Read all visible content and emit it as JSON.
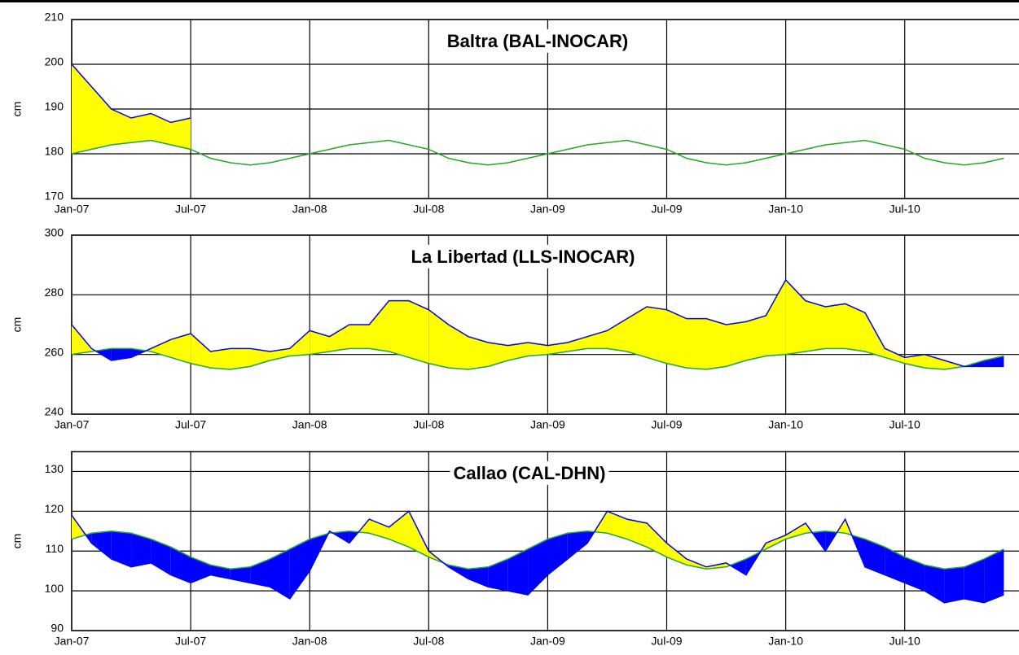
{
  "chart_data": [
    {
      "type": "area",
      "title": "Baltra (BAL-INOCAR)",
      "y_label": "cm",
      "x": [
        "Jan-07",
        "Feb-07",
        "Mar-07",
        "Apr-07",
        "May-07",
        "Jun-07",
        "Jul-07",
        "Aug-07",
        "Sep-07",
        "Oct-07",
        "Nov-07",
        "Dec-07",
        "Jan-08",
        "Feb-08",
        "Mar-08",
        "Apr-08",
        "May-08",
        "Jun-08",
        "Jul-08",
        "Aug-08",
        "Sep-08",
        "Oct-08",
        "Nov-08",
        "Dec-08",
        "Jan-09",
        "Feb-09",
        "Mar-09",
        "Apr-09",
        "May-09",
        "Jun-09",
        "Jul-09",
        "Aug-09",
        "Sep-09",
        "Oct-09",
        "Nov-09",
        "Dec-09",
        "Jan-10",
        "Feb-10",
        "Mar-10",
        "Apr-10",
        "May-10",
        "Jun-10",
        "Jul-10",
        "Aug-10",
        "Sep-10",
        "Oct-10",
        "Nov-10",
        "Dec-10"
      ],
      "xticks": [
        "Jan-07",
        "Jul-07",
        "Jan-08",
        "Jul-08",
        "Jan-09",
        "Jul-09",
        "Jan-10",
        "Jul-10"
      ],
      "ylim": [
        170,
        210
      ],
      "yticks": [
        170,
        180,
        190,
        200,
        210
      ],
      "grid": true,
      "fill_above": "#ffff00",
      "fill_below": "#0000ff",
      "series": [
        {
          "color": "#0000ff",
          "values": [
            200,
            195,
            190,
            188,
            189,
            187,
            188,
            null,
            null,
            null,
            null,
            null,
            null,
            null,
            null,
            null,
            null,
            null,
            null,
            null,
            null,
            null,
            null,
            null,
            null,
            null,
            null,
            null,
            null,
            null,
            null,
            null,
            null,
            null,
            null,
            null,
            null,
            null,
            null,
            null,
            null,
            null,
            null,
            null,
            null,
            null,
            null,
            null
          ]
        },
        {
          "color": "#22aa22",
          "values": [
            180,
            181,
            182,
            182.5,
            183,
            182,
            181,
            179,
            178,
            177.5,
            178,
            179,
            180,
            181,
            182,
            182.5,
            183,
            182,
            181,
            179,
            178,
            177.5,
            178,
            179,
            180,
            181,
            182,
            182.5,
            183,
            182,
            181,
            179,
            178,
            177.5,
            178,
            179,
            180,
            181,
            182,
            182.5,
            183,
            182,
            181,
            179,
            178,
            177.5,
            178,
            179
          ]
        }
      ]
    },
    {
      "type": "area",
      "title": "La Libertad (LLS-INOCAR)",
      "y_label": "cm",
      "x": [
        "Jan-07",
        "Feb-07",
        "Mar-07",
        "Apr-07",
        "May-07",
        "Jun-07",
        "Jul-07",
        "Aug-07",
        "Sep-07",
        "Oct-07",
        "Nov-07",
        "Dec-07",
        "Jan-08",
        "Feb-08",
        "Mar-08",
        "Apr-08",
        "May-08",
        "Jun-08",
        "Jul-08",
        "Aug-08",
        "Sep-08",
        "Oct-08",
        "Nov-08",
        "Dec-08",
        "Jan-09",
        "Feb-09",
        "Mar-09",
        "Apr-09",
        "May-09",
        "Jun-09",
        "Jul-09",
        "Aug-09",
        "Sep-09",
        "Oct-09",
        "Nov-09",
        "Dec-09",
        "Jan-10",
        "Feb-10",
        "Mar-10",
        "Apr-10",
        "May-10",
        "Jun-10",
        "Jul-10",
        "Aug-10",
        "Sep-10",
        "Oct-10",
        "Nov-10",
        "Dec-10"
      ],
      "xticks": [
        "Jan-07",
        "Jul-07",
        "Jan-08",
        "Jul-08",
        "Jan-09",
        "Jul-09",
        "Jan-10",
        "Jul-10"
      ],
      "ylim": [
        240,
        300
      ],
      "yticks": [
        240,
        260,
        280,
        300
      ],
      "grid": true,
      "fill_above": "#ffff00",
      "fill_below": "#0000ff",
      "series": [
        {
          "color": "#0000ff",
          "values": [
            270,
            262,
            258,
            259,
            262,
            265,
            267,
            261,
            262,
            262,
            261,
            262,
            268,
            266,
            270,
            270,
            278,
            278,
            275,
            270,
            266,
            264,
            263,
            264,
            263,
            264,
            266,
            268,
            272,
            276,
            275,
            272,
            272,
            270,
            271,
            273,
            285,
            278,
            276,
            277,
            274,
            262,
            259,
            260,
            258,
            256,
            256,
            256
          ]
        },
        {
          "color": "#22aa22",
          "values": [
            260,
            261,
            262,
            262,
            261,
            259,
            257,
            255.5,
            255,
            256,
            258,
            259.5,
            260,
            261,
            262,
            262,
            261,
            259,
            257,
            255.5,
            255,
            256,
            258,
            259.5,
            260,
            261,
            262,
            262,
            261,
            259,
            257,
            255.5,
            255,
            256,
            258,
            259.5,
            260,
            261,
            262,
            262,
            261,
            259,
            257,
            255.5,
            255,
            256,
            258,
            259.5
          ]
        }
      ]
    },
    {
      "type": "area",
      "title": "Callao (CAL-DHN)",
      "y_label": "cm",
      "x": [
        "Jan-07",
        "Feb-07",
        "Mar-07",
        "Apr-07",
        "May-07",
        "Jun-07",
        "Jul-07",
        "Aug-07",
        "Sep-07",
        "Oct-07",
        "Nov-07",
        "Dec-07",
        "Jan-08",
        "Feb-08",
        "Mar-08",
        "Apr-08",
        "May-08",
        "Jun-08",
        "Jul-08",
        "Aug-08",
        "Sep-08",
        "Oct-08",
        "Nov-08",
        "Dec-08",
        "Jan-09",
        "Feb-09",
        "Mar-09",
        "Apr-09",
        "May-09",
        "Jun-09",
        "Jul-09",
        "Aug-09",
        "Sep-09",
        "Oct-09",
        "Nov-09",
        "Dec-09",
        "Jan-10",
        "Feb-10",
        "Mar-10",
        "Apr-10",
        "May-10",
        "Jun-10",
        "Jul-10",
        "Aug-10",
        "Sep-10",
        "Oct-10",
        "Nov-10",
        "Dec-10"
      ],
      "xticks": [
        "Jan-07",
        "Jul-07",
        "Jan-08",
        "Jul-08",
        "Jan-09",
        "Jul-09",
        "Jan-10",
        "Jul-10"
      ],
      "ylim": [
        90,
        135
      ],
      "yticks": [
        90,
        100,
        110,
        120,
        130
      ],
      "grid": true,
      "fill_above": "#ffff00",
      "fill_below": "#0000ff",
      "series": [
        {
          "color": "#0000ff",
          "values": [
            119,
            112,
            108,
            106,
            107,
            104,
            102,
            104,
            103,
            102,
            101,
            98,
            105,
            115,
            112,
            118,
            116,
            120,
            110,
            106,
            103,
            101,
            100,
            99,
            104,
            108,
            112,
            120,
            118,
            117,
            112,
            108,
            106,
            107,
            104,
            112,
            114,
            117,
            110,
            118,
            106,
            104,
            102,
            100,
            97,
            98,
            97,
            99
          ]
        },
        {
          "color": "#22aa22",
          "values": [
            113,
            114.5,
            115,
            114.5,
            113,
            111,
            108.5,
            106.5,
            105.5,
            106,
            108,
            110.5,
            113,
            114.5,
            115,
            114.5,
            113,
            111,
            108.5,
            106.5,
            105.5,
            106,
            108,
            110.5,
            113,
            114.5,
            115,
            114.5,
            113,
            111,
            108.5,
            106.5,
            105.5,
            106,
            108,
            110.5,
            113,
            114.5,
            115,
            114.5,
            113,
            111,
            108.5,
            106.5,
            105.5,
            106,
            108,
            110.5
          ]
        }
      ]
    }
  ]
}
